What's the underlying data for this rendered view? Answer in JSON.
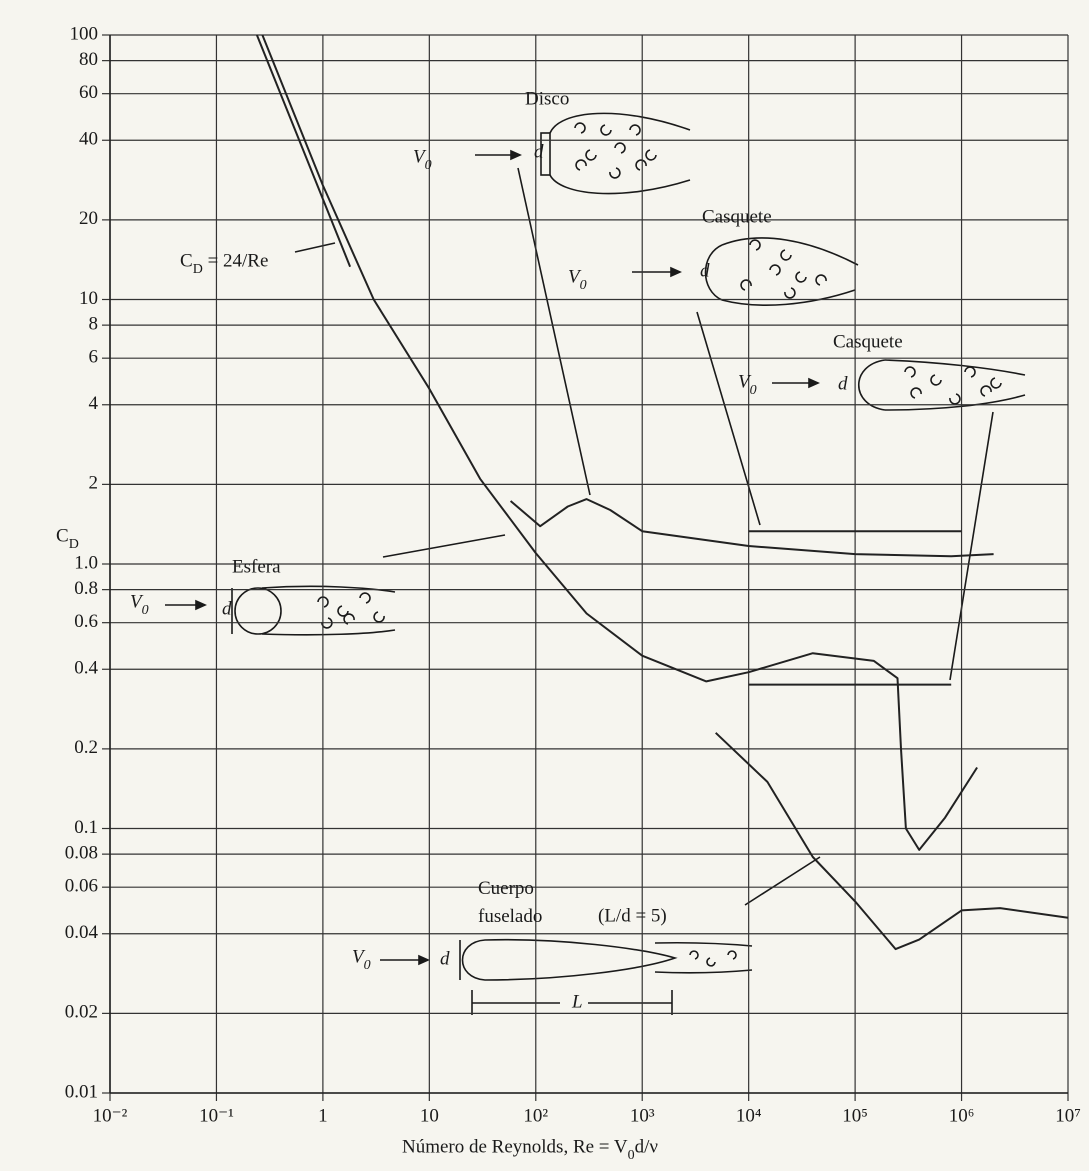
{
  "chart_data": {
    "type": "line",
    "xlabel": "Número de Reynolds, Re = V_0d/ν",
    "ylabel": "C_D",
    "xlog": true,
    "ylog": true,
    "grid": true,
    "color": "#222222",
    "xlim": [
      0.01,
      10000000
    ],
    "ylim": [
      0.01,
      100
    ],
    "xticks": [
      {
        "value": 0.01,
        "label": "10⁻²"
      },
      {
        "value": 0.1,
        "label": "10⁻¹"
      },
      1,
      10,
      {
        "value": 100,
        "label": "10²"
      },
      {
        "value": 1000,
        "label": "10³"
      },
      {
        "value": 10000,
        "label": "10⁴"
      },
      {
        "value": 100000,
        "label": "10⁵"
      },
      {
        "value": 1000000,
        "label": "10⁶"
      },
      {
        "value": 10000000,
        "label": "10⁷"
      }
    ],
    "yticks": [
      100,
      80,
      60,
      40,
      20,
      10,
      8,
      6,
      4,
      2,
      {
        "value": 1,
        "label": "1.0"
      },
      0.8,
      0.6,
      0.4,
      0.2,
      0.1,
      0.08,
      0.06,
      0.04,
      0.02,
      0.01
    ],
    "series": [
      {
        "name": "C_D = 24/Re",
        "x": [
          0.24,
          1.8
        ],
        "values": [
          100,
          13.3
        ]
      },
      {
        "name": "Esfera",
        "x": [
          0.27,
          1,
          3,
          10,
          30,
          100,
          300,
          1000,
          4000,
          10000,
          40000,
          150000,
          250000,
          270000,
          300000,
          400000,
          700000,
          1400000
        ],
        "values": [
          100,
          27,
          10,
          4.6,
          2.1,
          1.1,
          0.65,
          0.45,
          0.36,
          0.39,
          0.46,
          0.43,
          0.37,
          0.2,
          0.1,
          0.083,
          0.11,
          0.17
        ]
      },
      {
        "name": "Disco",
        "x": [
          58,
          110,
          200,
          300,
          500,
          1000,
          10000,
          100000,
          800000,
          2000000
        ],
        "values": [
          1.73,
          1.39,
          1.65,
          1.76,
          1.6,
          1.33,
          1.17,
          1.09,
          1.07,
          1.09
        ]
      },
      {
        "name": "Casquete",
        "x": [
          10000,
          1000000
        ],
        "values": [
          1.33,
          1.33
        ]
      },
      {
        "name": "Casquete",
        "x": [
          10000,
          800000
        ],
        "values": [
          0.35,
          0.35
        ]
      },
      {
        "name": "Cuerpo fuselado",
        "x": [
          4900,
          15000,
          40000,
          100000,
          240000,
          400000,
          1000000,
          2300000,
          10000000
        ],
        "values": [
          0.23,
          0.15,
          0.078,
          0.053,
          0.035,
          0.038,
          0.049,
          0.05,
          0.046
        ]
      }
    ],
    "annotations": [
      "(L/d = 5)",
      "V_0",
      "V_0",
      "V_0",
      "V_0",
      "V_0",
      "d",
      "d",
      "d",
      "d",
      "d",
      "L"
    ]
  }
}
